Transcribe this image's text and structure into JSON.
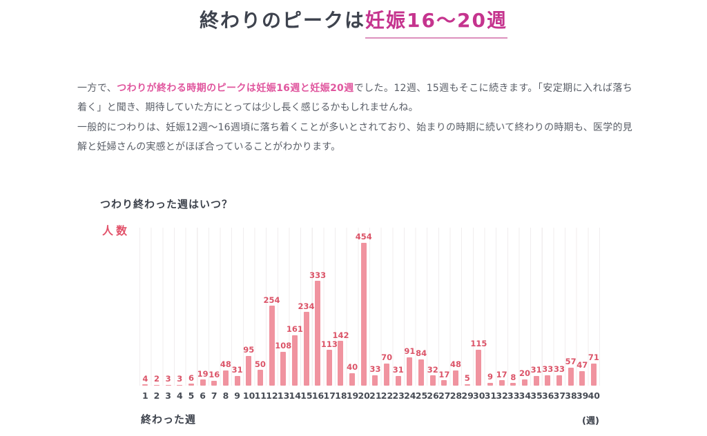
{
  "header": {
    "title_prefix": "終わりのピークは",
    "title_highlight": "妊娠16〜20週"
  },
  "paragraphs": {
    "p1_prefix": "一方で、",
    "p1_highlight": "つわりが終わる時期のピークは妊娠16週と妊娠20週",
    "p1_suffix": "でした。12週、15週もそこに続きます。「安定期に入れば落ち着く」と聞き、期待していた方にとっては少し長く感じるかもしれませんね。",
    "p2": "一般的につわりは、妊娠12週〜16週頃に落ち着くことが多いとされており、始まりの時期に続いて終わりの時期も、医学的見解と妊婦さんの実感とがほぼ合っていることがわかります。"
  },
  "chart": {
    "question": "つわり終わった週はいつ？",
    "y_axis_label": "人数",
    "x_axis_label": "終わった週",
    "x_axis_unit": "(週)"
  },
  "chart_data": {
    "type": "bar",
    "title": "つわり終わった週はいつ？",
    "xlabel": "終わった週",
    "ylabel": "人数",
    "x_unit": "週",
    "categories": [
      1,
      2,
      3,
      4,
      5,
      6,
      7,
      8,
      9,
      10,
      11,
      12,
      13,
      14,
      15,
      16,
      17,
      18,
      19,
      20,
      21,
      22,
      23,
      24,
      25,
      26,
      27,
      28,
      29,
      30,
      31,
      32,
      33,
      34,
      35,
      36,
      37,
      38,
      39,
      40
    ],
    "values": [
      4,
      2,
      3,
      3,
      6,
      19,
      16,
      48,
      31,
      95,
      50,
      254,
      108,
      161,
      234,
      333,
      113,
      142,
      40,
      454,
      33,
      70,
      31,
      91,
      84,
      32,
      17,
      48,
      5,
      115,
      9,
      17,
      8,
      20,
      31,
      33,
      33,
      57,
      47,
      71
    ],
    "ylim": [
      0,
      500
    ],
    "grid": "vertical-only",
    "legend": "none",
    "data_labels": "above-each-bar"
  },
  "colors": {
    "title_text": "#3e434e",
    "title_highlight": "#c5348e",
    "body_text": "#585d66",
    "body_highlight": "#e0569e",
    "bar": "#f0939f",
    "value_label": "#db5468",
    "y_axis_label": "#e25169",
    "gridline": "#f0edee",
    "tick_label": "#474c55"
  }
}
